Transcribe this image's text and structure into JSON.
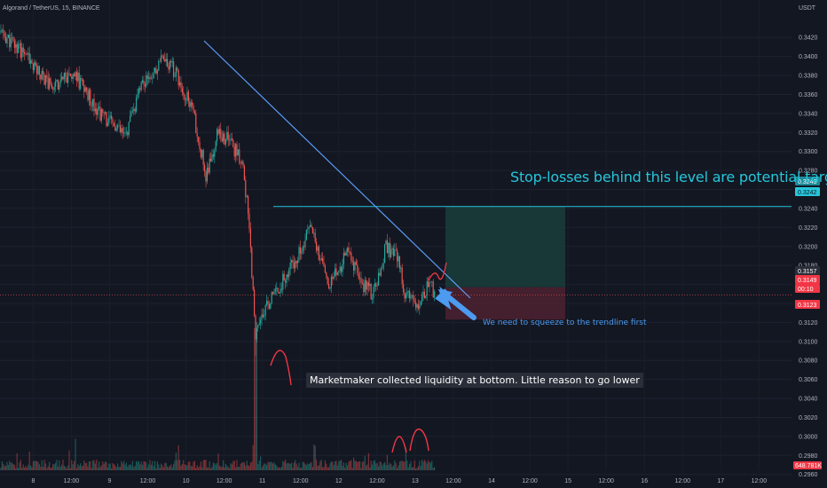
{
  "symbol_title": "Algorand / TetherUS, 15, BINANCE",
  "currency_label": "USDT",
  "annotations": {
    "target": "Stop-losses behind this level are potential target",
    "squeeze": "We need to squeeze to the trendline first",
    "liquidity": "Marketmaker collected liquidity at bottom. Little reason to go lower"
  },
  "price_tags": {
    "level_a": "0.3243",
    "level_b": "0.3242",
    "last": "0.3157",
    "current": "0.3149",
    "countdown": "00:10",
    "stop": "0.3123",
    "volume": "648.781K"
  },
  "colors": {
    "background": "#131722",
    "up": "#26a69a",
    "down": "#ef5350",
    "trendline": "#5b9cf6",
    "level_line": "#26c6da",
    "profit_zone": "#1a3b3a",
    "loss_zone": "#4a2030",
    "arrow": "#4c9bf0",
    "freehand": "#f23645"
  },
  "chart_data": {
    "type": "candlestick",
    "title": "Algorand / TetherUS, 15, BINANCE",
    "ylabel": "USDT",
    "ylim": [
      0.295,
      0.343
    ],
    "y_ticks": [
      "0.3420",
      "0.3400",
      "0.3380",
      "0.3360",
      "0.3340",
      "0.3320",
      "0.3300",
      "0.3280",
      "0.3260",
      "0.3240",
      "0.3220",
      "0.3200",
      "0.3180",
      "0.3160",
      "0.3140",
      "0.3120",
      "0.3100",
      "0.3080",
      "0.3060",
      "0.3040",
      "0.3020",
      "0.3000",
      "0.2980",
      "0.2960"
    ],
    "x_ticks": [
      "8",
      "12:00",
      "9",
      "12:00",
      "10",
      "12:00",
      "11",
      "12:00",
      "12",
      "12:00",
      "13",
      "12:00",
      "14",
      "12:00",
      "15",
      "12:00",
      "16",
      "12:00",
      "17",
      "12:00"
    ],
    "price_path": [
      [
        0,
        0.3425
      ],
      [
        4,
        0.34
      ],
      [
        8,
        0.337
      ],
      [
        12,
        0.338
      ],
      [
        16,
        0.334
      ],
      [
        20,
        0.3315
      ],
      [
        23,
        0.3375
      ],
      [
        26,
        0.3395
      ],
      [
        28,
        0.3385
      ],
      [
        31,
        0.334
      ],
      [
        33,
        0.3275
      ],
      [
        35,
        0.332
      ],
      [
        37,
        0.331
      ],
      [
        39,
        0.3285
      ],
      [
        40,
        0.322
      ],
      [
        41,
        0.3105
      ],
      [
        43,
        0.314
      ],
      [
        46,
        0.317
      ],
      [
        48,
        0.3195
      ],
      [
        50,
        0.3225
      ],
      [
        51,
        0.3195
      ],
      [
        53,
        0.316
      ],
      [
        56,
        0.3195
      ],
      [
        58,
        0.316
      ],
      [
        60,
        0.315
      ],
      [
        62,
        0.32
      ],
      [
        64,
        0.3185
      ],
      [
        65,
        0.3148
      ],
      [
        67,
        0.314
      ],
      [
        69,
        0.3162
      ],
      [
        70,
        0.3149
      ]
    ],
    "trendline": [
      [
        27,
        0.34
      ],
      [
        73,
        0.314
      ]
    ],
    "level": 0.3242,
    "position": {
      "entry": 0.3157,
      "target": 0.3242,
      "stop": 0.3123
    },
    "volume_note": "648.781K"
  }
}
